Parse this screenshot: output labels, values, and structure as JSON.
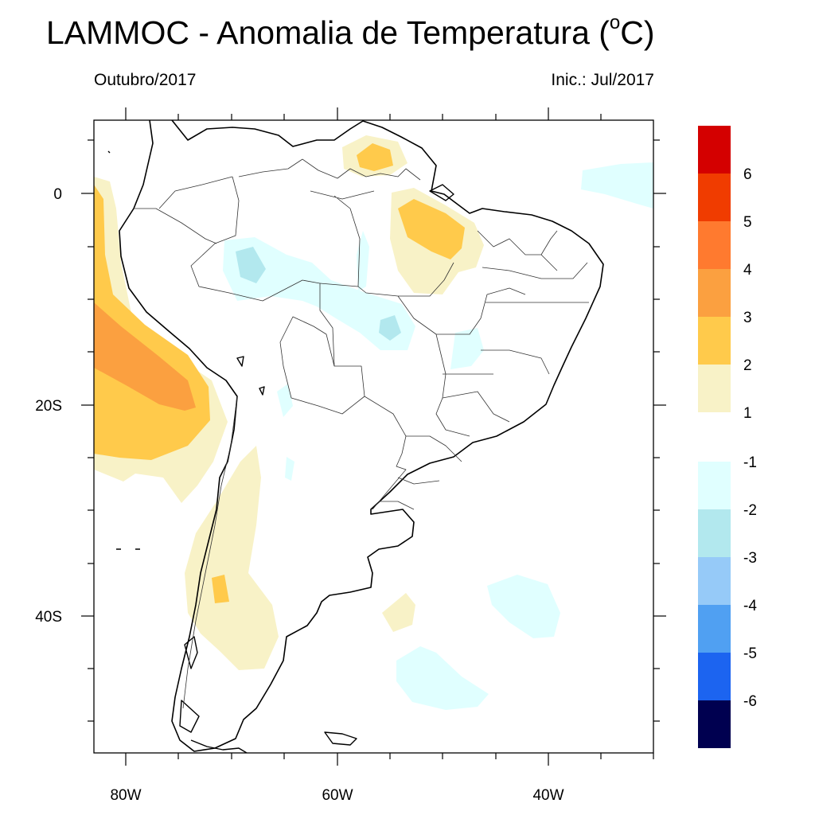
{
  "title": "LAMMOC - Anomalia de Temperatura (",
  "title_superscript": "o",
  "title_suffix": "C)",
  "subtitle_left": "Outubro/2017",
  "subtitle_right": "Inic.: Jul/2017",
  "axes": {
    "x_ticks": [
      "80W",
      "60W",
      "40W"
    ],
    "y_ticks": [
      "0",
      "20S",
      "40S"
    ]
  },
  "colorbar": {
    "positive_labels": [
      "6",
      "5",
      "4",
      "3",
      "2",
      "1"
    ],
    "negative_labels": [
      "-1",
      "-2",
      "-3",
      "-4",
      "-5",
      "-6"
    ],
    "positive_colors": [
      "#d40000",
      "#f03c00",
      "#ff7a2f",
      "#fba040",
      "#ffca4b",
      "#f8f2c7"
    ],
    "negative_colors": [
      "#e0ffff",
      "#b2e8ee",
      "#96caf8",
      "#50a0f2",
      "#1c64f0",
      "#000050"
    ]
  }
}
